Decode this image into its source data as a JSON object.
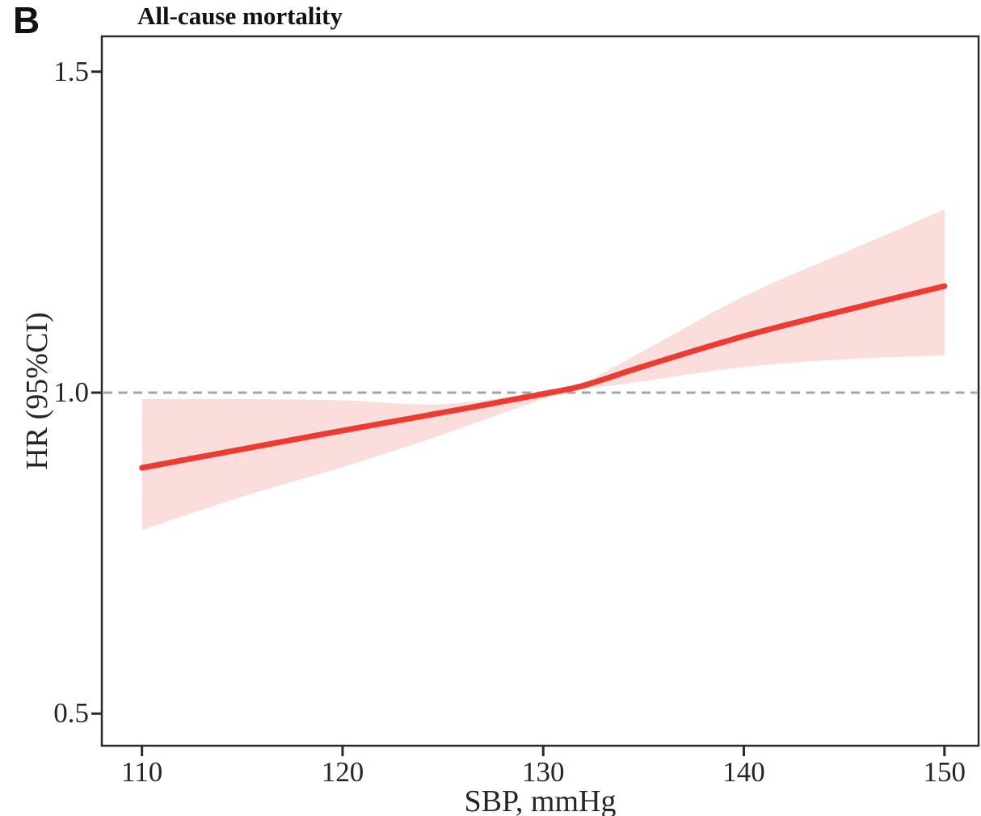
{
  "figure": {
    "panel_label": "B"
  },
  "chart_data": {
    "type": "line",
    "title": "All-cause mortality",
    "xlabel": "SBP, mmHg",
    "ylabel": "HR (95%CI)",
    "x_ticks": [
      110,
      120,
      130,
      140,
      150
    ],
    "x_tick_labels": [
      "110",
      "120",
      "130",
      "140",
      "150"
    ],
    "y_tick_values": [
      1.5,
      1.0,
      0.5
    ],
    "y_tick_labels": [
      "1.5",
      "1.0",
      "0.5"
    ],
    "xlim": [
      108.0,
      151.7
    ],
    "ylim": [
      0.45,
      1.555
    ],
    "grid": "off",
    "legend": "none",
    "reference_line": 1.0,
    "reference_style": "dashed",
    "series": [
      {
        "name": "HR with 95% CI band",
        "x": [
          110,
          115,
          120,
          125,
          130,
          132,
          135,
          140,
          145,
          150
        ],
        "hr": [
          0.883,
          0.912,
          0.941,
          0.969,
          0.998,
          1.011,
          1.041,
          1.088,
          1.128,
          1.166
        ],
        "lower": [
          0.786,
          0.838,
          0.884,
          0.935,
          0.99,
          1.005,
          1.018,
          1.04,
          1.052,
          1.058
        ],
        "upper": [
          0.99,
          0.99,
          0.988,
          0.982,
          1.002,
          1.016,
          1.065,
          1.15,
          1.218,
          1.285
        ]
      }
    ],
    "annotations": {
      "hr_at_110": 0.88,
      "hr_crosses_1_at_sbp": 130,
      "hr_at_150": 1.17
    },
    "colors": {
      "line": "#ee3b31",
      "band": "#fbdddc",
      "reference": "#a6a6a6",
      "axis": "#2a2a2a",
      "text": "#262626"
    }
  }
}
